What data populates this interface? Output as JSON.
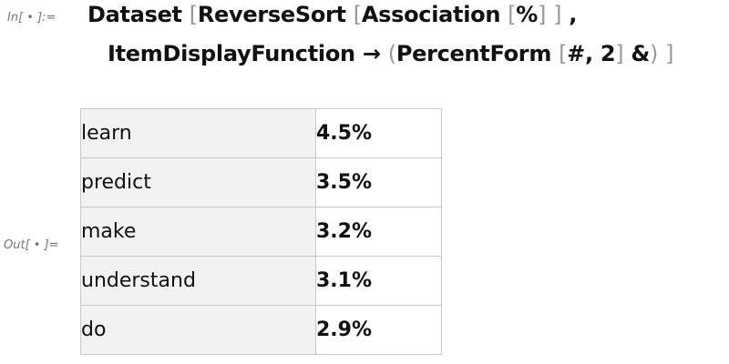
{
  "input_label": "In[ • ]:=",
  "output_label": "Out[ • ]=",
  "code": {
    "line1": [
      {
        "t": "Dataset ",
        "c": ""
      },
      {
        "t": "[",
        "c": "br"
      },
      {
        "t": "ReverseSort ",
        "c": ""
      },
      {
        "t": "[",
        "c": "br"
      },
      {
        "t": "Association ",
        "c": ""
      },
      {
        "t": "[",
        "c": "br"
      },
      {
        "t": "%",
        "c": ""
      },
      {
        "t": "]",
        "c": "br"
      },
      {
        "t": " ",
        "c": ""
      },
      {
        "t": "]",
        "c": "br"
      },
      {
        "t": " ,",
        "c": ""
      }
    ],
    "line2": [
      {
        "t": "ItemDisplayFunction → ",
        "c": ""
      },
      {
        "t": "(",
        "c": "br"
      },
      {
        "t": "PercentForm ",
        "c": ""
      },
      {
        "t": "[",
        "c": "br"
      },
      {
        "t": "#, 2",
        "c": ""
      },
      {
        "t": "]",
        "c": "br"
      },
      {
        "t": " &",
        "c": ""
      },
      {
        "t": ")",
        "c": "br"
      },
      {
        "t": " ",
        "c": ""
      },
      {
        "t": "]",
        "c": "br"
      }
    ]
  },
  "rows": [
    {
      "key": "learn",
      "value": "4.5%"
    },
    {
      "key": "predict",
      "value": "3.5%"
    },
    {
      "key": "make",
      "value": "3.2%"
    },
    {
      "key": "understand",
      "value": "3.1%"
    },
    {
      "key": "do",
      "value": "2.9%"
    }
  ]
}
